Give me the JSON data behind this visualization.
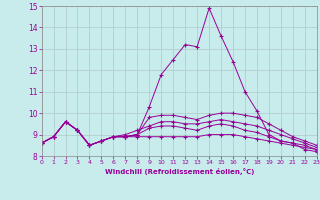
{
  "title": "",
  "xlabel": "Windchill (Refroidissement éolien,°C)",
  "ylabel": "",
  "background_color": "#c8ecec",
  "line_color": "#990099",
  "grid_color": "#b0c8c8",
  "xlim": [
    0,
    23
  ],
  "ylim": [
    8,
    15
  ],
  "x": [
    0,
    1,
    2,
    3,
    4,
    5,
    6,
    7,
    8,
    9,
    10,
    11,
    12,
    13,
    14,
    15,
    16,
    17,
    18,
    19,
    20,
    21,
    22,
    23
  ],
  "lines": [
    [
      8.6,
      8.9,
      9.6,
      9.2,
      8.5,
      8.7,
      8.9,
      8.9,
      9.0,
      10.3,
      11.8,
      12.5,
      13.2,
      13.1,
      14.9,
      13.6,
      12.4,
      11.0,
      10.1,
      9.0,
      8.7,
      8.6,
      8.3,
      8.2
    ],
    [
      8.6,
      8.9,
      9.6,
      9.2,
      8.5,
      8.7,
      8.9,
      8.9,
      9.0,
      9.8,
      9.9,
      9.9,
      9.8,
      9.7,
      9.9,
      10.0,
      10.0,
      9.9,
      9.8,
      9.5,
      9.2,
      8.9,
      8.7,
      8.5
    ],
    [
      8.6,
      8.9,
      9.6,
      9.2,
      8.5,
      8.7,
      8.9,
      8.9,
      9.0,
      9.3,
      9.4,
      9.4,
      9.3,
      9.2,
      9.4,
      9.5,
      9.4,
      9.2,
      9.1,
      8.9,
      8.7,
      8.6,
      8.5,
      8.3
    ],
    [
      8.6,
      8.9,
      9.6,
      9.2,
      8.5,
      8.7,
      8.9,
      9.0,
      9.2,
      9.4,
      9.6,
      9.6,
      9.5,
      9.5,
      9.6,
      9.7,
      9.6,
      9.5,
      9.4,
      9.2,
      9.0,
      8.8,
      8.6,
      8.4
    ],
    [
      8.6,
      8.9,
      9.6,
      9.2,
      8.5,
      8.7,
      8.9,
      8.9,
      8.9,
      8.9,
      8.9,
      8.9,
      8.9,
      8.9,
      9.0,
      9.0,
      9.0,
      8.9,
      8.8,
      8.7,
      8.6,
      8.5,
      8.4,
      8.3
    ]
  ]
}
